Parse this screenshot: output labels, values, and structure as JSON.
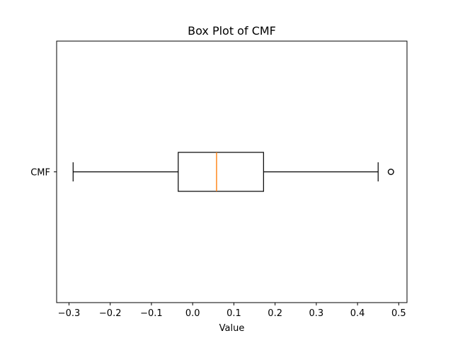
{
  "chart_data": {
    "type": "boxplot",
    "title": "Box Plot of CMF",
    "xlabel": "Value",
    "ylabel": "",
    "orientation": "horizontal",
    "xlim": [
      -0.33,
      0.52
    ],
    "xticks": [
      -0.3,
      -0.2,
      -0.1,
      0.0,
      0.1,
      0.2,
      0.3,
      0.4,
      0.5
    ],
    "xtick_labels": [
      "−0.3",
      "−0.2",
      "−0.1",
      "0.0",
      "0.1",
      "0.2",
      "0.3",
      "0.4",
      "0.5"
    ],
    "categories": [
      "CMF"
    ],
    "boxes": [
      {
        "label": "CMF",
        "whisker_low": -0.29,
        "q1": -0.035,
        "median": 0.058,
        "q3": 0.172,
        "whisker_high": 0.45,
        "outliers": [
          0.481
        ]
      }
    ],
    "grid": false,
    "colors": {
      "median": "#ff7f0e",
      "box": "#000000",
      "axes": "#000000"
    }
  }
}
